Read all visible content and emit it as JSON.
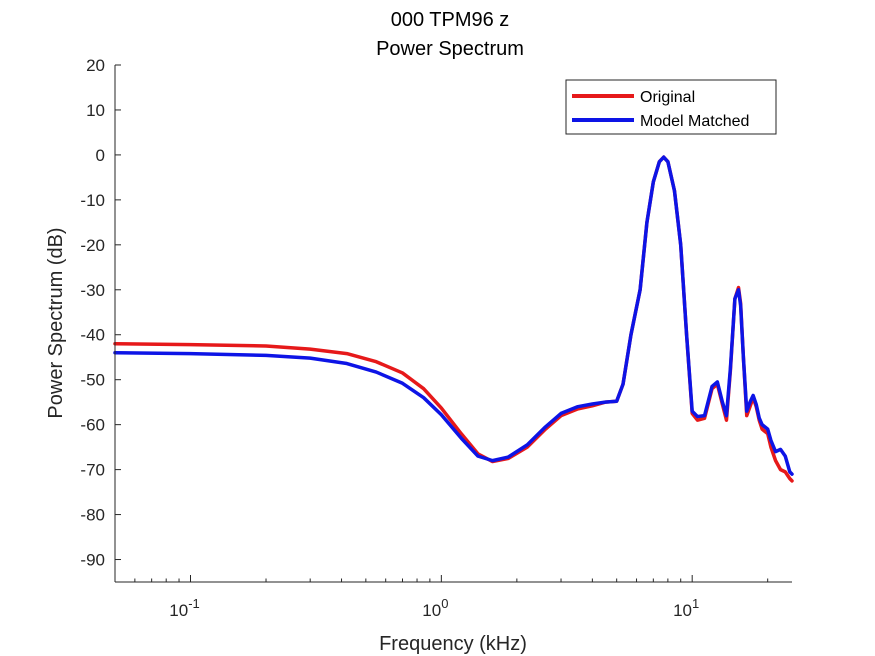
{
  "chart_data": {
    "type": "line",
    "title": "000 TPM96 z",
    "subtitle": "Power Spectrum",
    "xlabel": "Frequency (kHz)",
    "ylabel": "Power Spectrum (dB)",
    "xscale": "log",
    "xlim": [
      0.05,
      25
    ],
    "ylim": [
      -95,
      20
    ],
    "yticks": [
      20,
      10,
      0,
      -10,
      -20,
      -30,
      -40,
      -50,
      -60,
      -70,
      -80,
      -90
    ],
    "ytick_labels": [
      "20",
      "10",
      "0",
      "-10",
      "-20",
      "-30",
      "-40",
      "-50",
      "-60",
      "-70",
      "-80",
      "-90"
    ],
    "xticks": [
      {
        "value": 0.1,
        "base": "10",
        "exp": "-1"
      },
      {
        "value": 1,
        "base": "10",
        "exp": "0"
      },
      {
        "value": 10,
        "base": "10",
        "exp": "1"
      }
    ],
    "grid": false,
    "legend_position": "top-right",
    "series": [
      {
        "name": "Original",
        "color": "#e6191a",
        "x": [
          0.05,
          0.1,
          0.2,
          0.3,
          0.42,
          0.55,
          0.7,
          0.85,
          1.0,
          1.2,
          1.4,
          1.6,
          1.85,
          2.2,
          2.6,
          3.0,
          3.5,
          4.0,
          4.5,
          5.0,
          5.3,
          5.7,
          6.2,
          6.6,
          7.0,
          7.4,
          7.7,
          8.0,
          8.5,
          9.0,
          9.5,
          10.0,
          10.5,
          11.2,
          12.0,
          12.6,
          13.2,
          13.7,
          14.2,
          14.8,
          15.3,
          15.6,
          16.0,
          16.5,
          17.0,
          17.5,
          18.0,
          18.5,
          19.0,
          20.0,
          20.6,
          21.5,
          22.5,
          23.5,
          24.5,
          25.0
        ],
        "y": [
          -42,
          -42.2,
          -42.5,
          -43.2,
          -44.2,
          -46,
          -48.5,
          -52,
          -56.3,
          -62,
          -66.5,
          -68.2,
          -67.5,
          -65,
          -61,
          -58,
          -56.5,
          -55.8,
          -55,
          -54.8,
          -51,
          -40,
          -30,
          -15,
          -6,
          -1.5,
          -0.5,
          -1.5,
          -8,
          -20,
          -40,
          -57.5,
          -59,
          -58.6,
          -52,
          -51,
          -55.5,
          -59,
          -48,
          -32,
          -29.5,
          -33,
          -45,
          -58,
          -56,
          -54,
          -56,
          -59,
          -61,
          -62,
          -65,
          -68,
          -70,
          -70.5,
          -72,
          -72.5
        ]
      },
      {
        "name": "Model Matched",
        "color": "#0d14e6",
        "x": [
          0.05,
          0.1,
          0.2,
          0.3,
          0.42,
          0.55,
          0.7,
          0.85,
          1.0,
          1.2,
          1.4,
          1.6,
          1.85,
          2.2,
          2.6,
          3.0,
          3.5,
          4.0,
          4.5,
          5.0,
          5.3,
          5.7,
          6.2,
          6.6,
          7.0,
          7.4,
          7.7,
          8.0,
          8.5,
          9.0,
          9.5,
          10.0,
          10.5,
          11.2,
          12.0,
          12.6,
          13.2,
          13.7,
          14.2,
          14.8,
          15.3,
          15.6,
          16.0,
          16.5,
          17.0,
          17.5,
          18.0,
          18.5,
          19.0,
          20.0,
          20.6,
          21.5,
          22.5,
          23.5,
          24.5,
          25.0
        ],
        "y": [
          -44,
          -44.2,
          -44.6,
          -45.2,
          -46.4,
          -48.3,
          -50.8,
          -54,
          -57.8,
          -63,
          -67,
          -68,
          -67.2,
          -64.5,
          -60.5,
          -57.5,
          -56,
          -55.4,
          -55,
          -54.8,
          -51,
          -40,
          -30,
          -15,
          -6,
          -1.5,
          -0.5,
          -1.5,
          -8,
          -20,
          -40,
          -57,
          -58.2,
          -58,
          -51.5,
          -50.5,
          -55,
          -58,
          -47.5,
          -32,
          -30,
          -33.5,
          -45,
          -57,
          -55,
          -53.5,
          -55.5,
          -58.5,
          -60,
          -61,
          -63.5,
          -66,
          -65.5,
          -67,
          -70.5,
          -71
        ]
      }
    ]
  }
}
